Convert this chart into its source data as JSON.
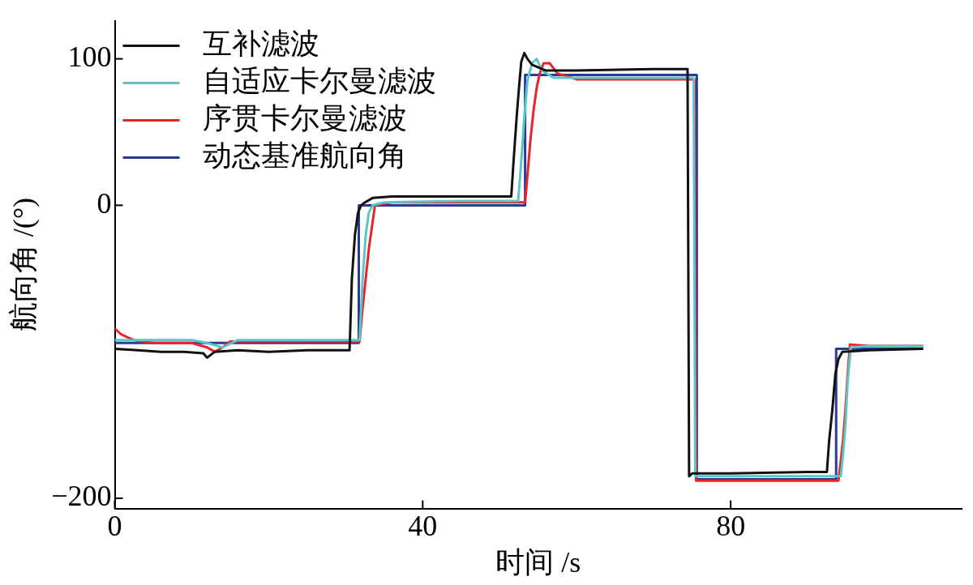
{
  "chart_data": {
    "type": "line",
    "xlabel": "时间 /s",
    "ylabel": "航向角 /(°)",
    "xlim": [
      0,
      110
    ],
    "ylim": [
      -207,
      126
    ],
    "xticks": [
      0,
      40,
      80
    ],
    "yticks": [
      -200,
      0,
      100
    ],
    "grid": false,
    "legend": "top left",
    "marker": "none",
    "line_style": "solid",
    "series": [
      {
        "name": "互补滤波",
        "color": "#111111",
        "x": [
          0,
          3,
          6,
          9,
          11.5,
          12,
          13,
          16,
          20,
          25,
          30.5,
          30.8,
          31.2,
          31.6,
          32,
          32.5,
          33.5,
          36,
          45,
          51.5,
          51.8,
          52.2,
          52.5,
          52.8,
          53.2,
          53.6,
          54.2,
          56,
          60,
          70,
          74.4,
          74.6,
          75,
          80,
          90,
          92.5,
          92.8,
          93.2,
          93.6,
          94,
          94.5,
          98,
          105
        ],
        "values": [
          -98,
          -99,
          -100,
          -100,
          -101,
          -104,
          -100,
          -99,
          -100,
          -99,
          -99,
          -50,
          -20,
          -5,
          0,
          2,
          5,
          6,
          6,
          6,
          30,
          60,
          80,
          98,
          104,
          100,
          96,
          92,
          92,
          93,
          93,
          -185,
          -183,
          -183,
          -182,
          -182,
          -160,
          -140,
          -115,
          -105,
          -100,
          -99,
          -98
        ]
      },
      {
        "name": "自适应卡尔曼滤波",
        "color": "#5cc6c6",
        "x": [
          0,
          5,
          10,
          12,
          14,
          16,
          20,
          31.8,
          32.2,
          32.6,
          33,
          33.5,
          35,
          45,
          52.4,
          52.8,
          53.2,
          53.6,
          54.2,
          54.8,
          55.5,
          57,
          60,
          70,
          75.2,
          75.4,
          80,
          90,
          94.3,
          94.6,
          94.9,
          95.2,
          95.6,
          98,
          105
        ],
        "values": [
          -92,
          -92,
          -92,
          -94,
          -97,
          -92,
          -92,
          -92,
          -50,
          -20,
          -5,
          0,
          2,
          3,
          3,
          30,
          60,
          85,
          97,
          100,
          92,
          87,
          87,
          87,
          87,
          -185,
          -185,
          -185,
          -185,
          -170,
          -150,
          -120,
          -97,
          -96,
          -96
        ]
      },
      {
        "name": "序贯卡尔曼滤波",
        "color": "#e8242a",
        "x": [
          0,
          0.8,
          1.6,
          2.5,
          5,
          10,
          12,
          13,
          14,
          15,
          20,
          31.8,
          32.2,
          32.6,
          33,
          33.4,
          33.8,
          36,
          45,
          53.3,
          53.6,
          54,
          54.4,
          54.8,
          55.2,
          55.7,
          56.5,
          57.5,
          60,
          70,
          75.3,
          75.5,
          80,
          90,
          94,
          94.3,
          94.6,
          94.9,
          95.2,
          95.5,
          98,
          105
        ],
        "values": [
          -84,
          -88,
          -90,
          -92,
          -94,
          -94,
          -97,
          -100,
          -97,
          -93,
          -93,
          -93,
          -70,
          -50,
          -30,
          -15,
          0,
          2,
          2,
          2,
          20,
          45,
          65,
          80,
          90,
          97,
          97,
          90,
          86,
          86,
          86,
          -188,
          -188,
          -188,
          -188,
          -175,
          -160,
          -140,
          -115,
          -95,
          -96,
          -96
        ]
      },
      {
        "name": "动态基准航向角",
        "color": "#2a3a9a",
        "x": [
          0,
          31.7,
          31.7,
          53.3,
          53.3,
          75.6,
          75.6,
          93.7,
          93.7,
          105
        ],
        "values": [
          -94,
          -94,
          0,
          0,
          89,
          89,
          -187,
          -187,
          -98,
          -98
        ]
      }
    ]
  }
}
